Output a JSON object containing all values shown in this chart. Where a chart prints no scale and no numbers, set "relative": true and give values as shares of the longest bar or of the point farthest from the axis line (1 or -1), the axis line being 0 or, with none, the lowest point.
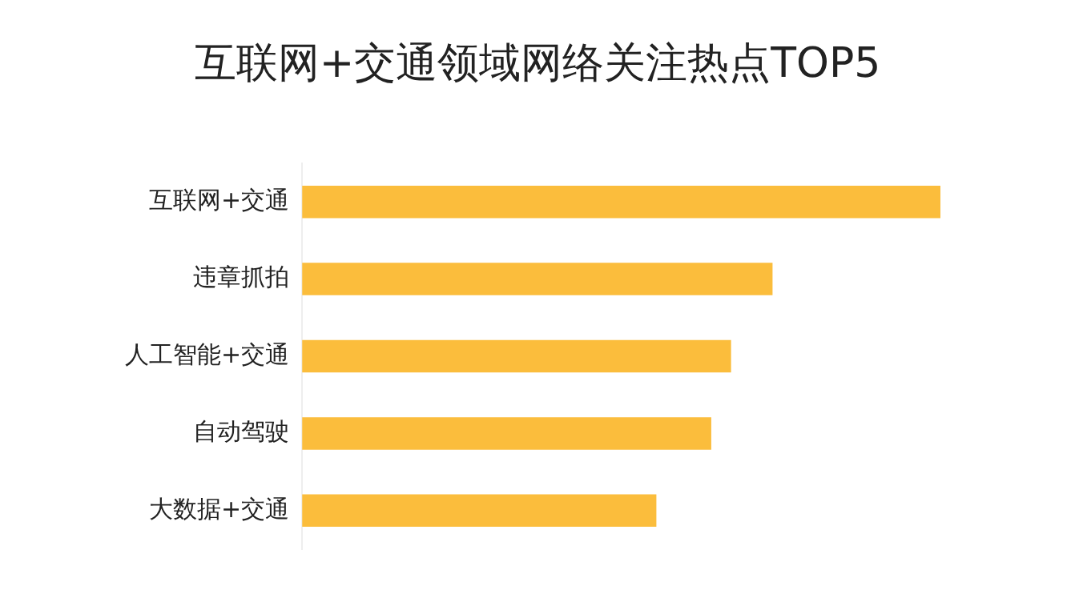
{
  "chart_data": {
    "type": "bar",
    "orientation": "horizontal",
    "relative": true,
    "title": "互联网+交通领域网络关注热点TOP5",
    "categories": [
      "互联网+交通",
      "违章抓拍",
      "人工智能+交通",
      "自动驾驶",
      "大数据+交通"
    ],
    "values": [
      1,
      0.737,
      0.672,
      0.641,
      0.555
    ],
    "color": "#fbbd3c",
    "legend": false
  }
}
